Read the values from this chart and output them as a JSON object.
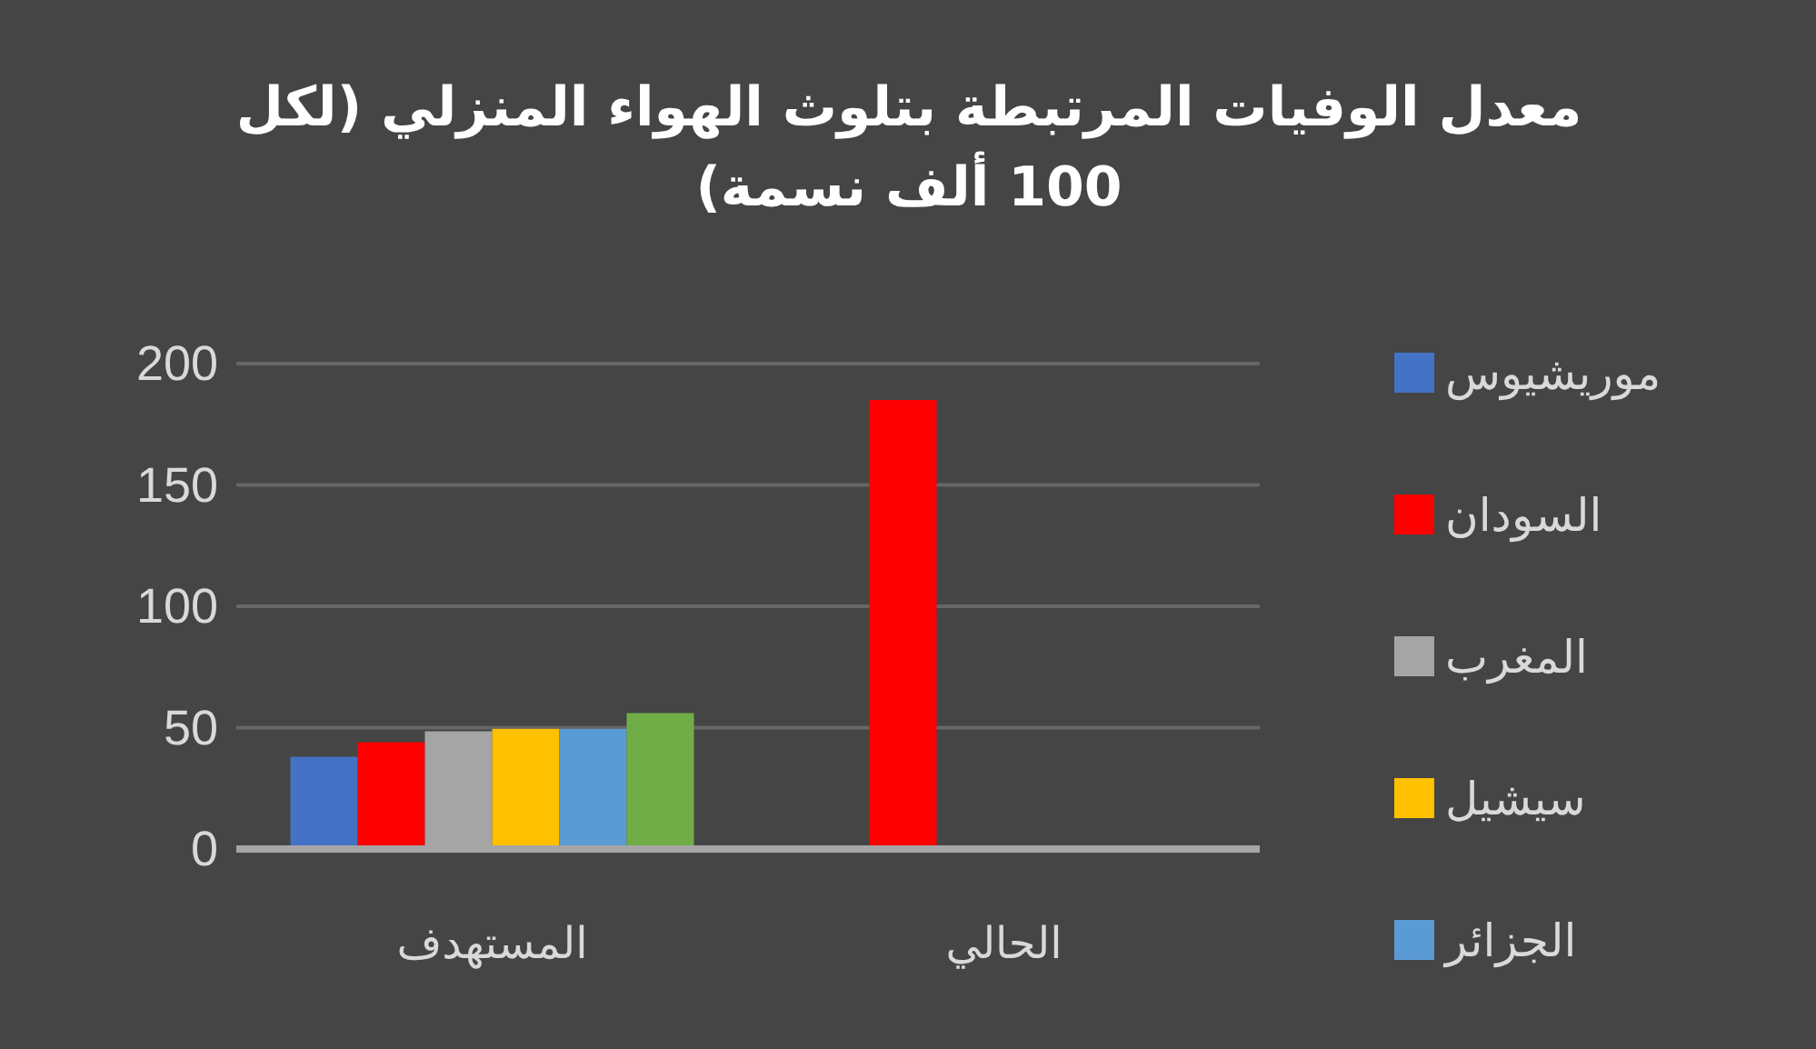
{
  "chart_data": {
    "type": "bar",
    "title": "معدل الوفيات المرتبطة بتلوث الهواء المنزلي (لكل 100 ألف نسمة)",
    "categories": [
      "المستهدف",
      "الحالي"
    ],
    "series": [
      {
        "name": "موريشيوس",
        "color": "#4472c4",
        "values": [
          38,
          null
        ]
      },
      {
        "name": "السودان",
        "color": "#ff0000",
        "values": [
          44,
          185
        ]
      },
      {
        "name": "المغرب",
        "color": "#a5a5a5",
        "values": [
          48.5,
          null
        ]
      },
      {
        "name": "سيشيل",
        "color": "#ffc000",
        "values": [
          49.5,
          null
        ]
      },
      {
        "name": "الجزائر",
        "color": "#5b9bd5",
        "values": [
          49.5,
          null
        ]
      },
      {
        "color": "#70ad47",
        "values": [
          56,
          null
        ]
      }
    ],
    "ylim": [
      0,
      200
    ],
    "yticks": [
      0,
      50,
      100,
      150,
      200
    ],
    "grid": "y",
    "legend": "right"
  }
}
